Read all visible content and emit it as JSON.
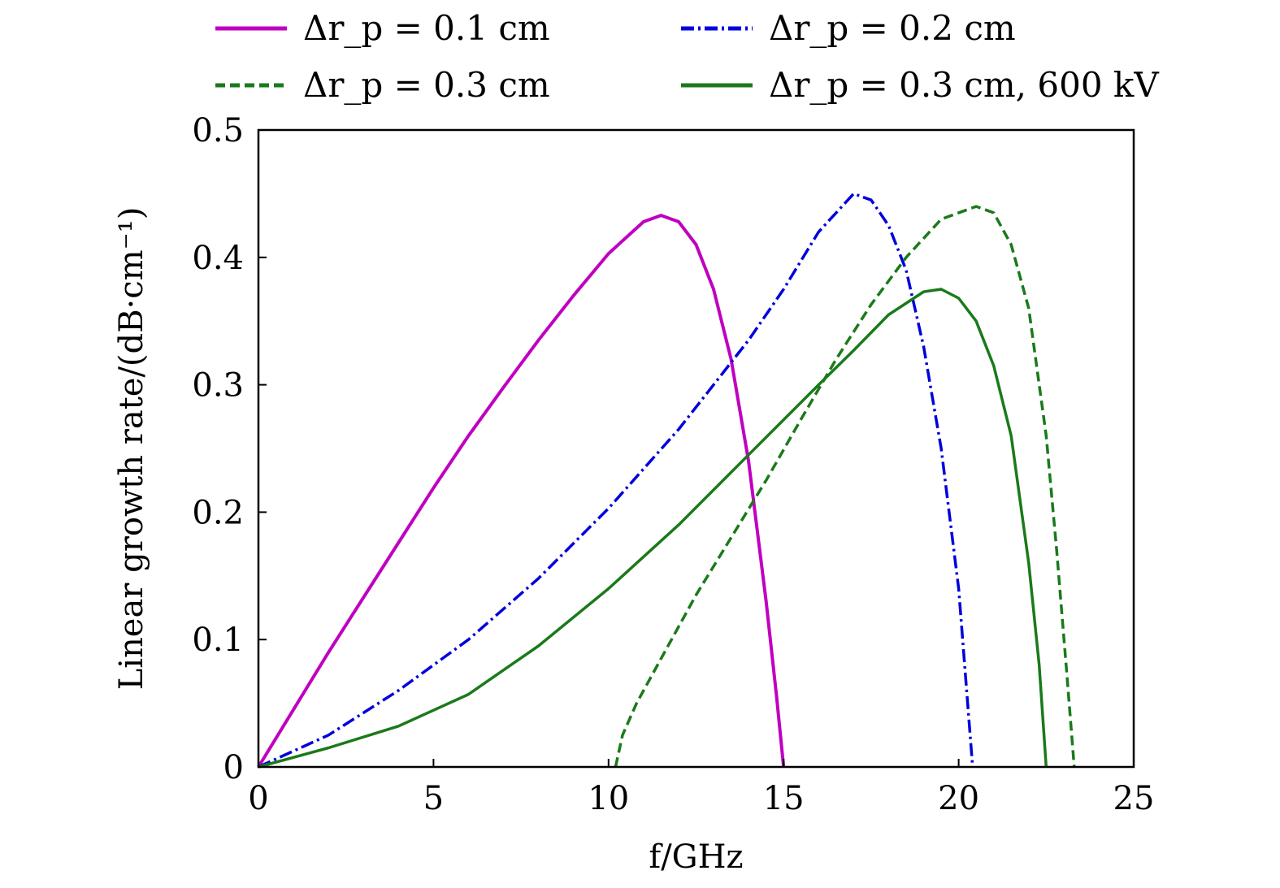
{
  "chart_data": {
    "type": "line",
    "xlabel": "f/GHz",
    "ylabel": "Linear growth rate/(dB·cm⁻¹)",
    "xlim": [
      0,
      25
    ],
    "ylim": [
      0,
      0.5
    ],
    "xticks": [
      "0",
      "5",
      "10",
      "15",
      "20",
      "25"
    ],
    "yticks": [
      "0",
      "0.1",
      "0.2",
      "0.3",
      "0.4",
      "0.5"
    ],
    "grid": false,
    "legend_placement": "top, outside plot, 2 columns",
    "series": [
      {
        "name": "Δr_p = 0.1 cm",
        "color": "#c000c0",
        "style": "solid",
        "x": [
          0,
          1,
          2,
          3,
          4,
          5,
          6,
          7,
          8,
          9,
          10,
          11,
          11.5,
          12,
          12.5,
          13,
          13.5,
          14,
          14.5,
          14.8,
          15
        ],
        "y": [
          0,
          0.045,
          0.09,
          0.133,
          0.176,
          0.219,
          0.26,
          0.298,
          0.335,
          0.37,
          0.403,
          0.428,
          0.433,
          0.428,
          0.41,
          0.375,
          0.32,
          0.24,
          0.13,
          0.055,
          0
        ]
      },
      {
        "name": "Δr_p = 0.2 cm",
        "color": "#0000dd",
        "style": "dashdot",
        "x": [
          0,
          2,
          4,
          6,
          8,
          10,
          12,
          14,
          15,
          16,
          17,
          17.5,
          18,
          18.5,
          19,
          19.5,
          20,
          20.2,
          20.4
        ],
        "y": [
          0,
          0.025,
          0.06,
          0.1,
          0.148,
          0.203,
          0.265,
          0.335,
          0.375,
          0.42,
          0.45,
          0.445,
          0.425,
          0.39,
          0.33,
          0.25,
          0.14,
          0.07,
          0
        ]
      },
      {
        "name": "Δr_p = 0.3 cm",
        "color": "#1a7a1a",
        "style": "dashed",
        "x": [
          10.2,
          10.4,
          10.8,
          11.5,
          12.5,
          13.5,
          14.5,
          15.5,
          16.5,
          17.5,
          18.5,
          19.5,
          20.5,
          21,
          21.5,
          22,
          22.5,
          22.8,
          23.1,
          23.3
        ],
        "y": [
          0,
          0.025,
          0.05,
          0.085,
          0.135,
          0.18,
          0.225,
          0.273,
          0.32,
          0.363,
          0.4,
          0.43,
          0.44,
          0.435,
          0.41,
          0.36,
          0.26,
          0.17,
          0.07,
          0
        ]
      },
      {
        "name": "Δr_p = 0.3 cm, 600 kV",
        "color": "#1a7a1a",
        "style": "solid",
        "x": [
          0,
          2,
          4,
          6,
          8,
          10,
          12,
          14,
          16,
          17,
          18,
          19,
          19.5,
          20,
          20.5,
          21,
          21.5,
          22,
          22.3,
          22.5
        ],
        "y": [
          0,
          0.015,
          0.032,
          0.057,
          0.095,
          0.14,
          0.19,
          0.245,
          0.3,
          0.327,
          0.355,
          0.373,
          0.375,
          0.368,
          0.35,
          0.315,
          0.26,
          0.16,
          0.08,
          0
        ]
      }
    ]
  }
}
